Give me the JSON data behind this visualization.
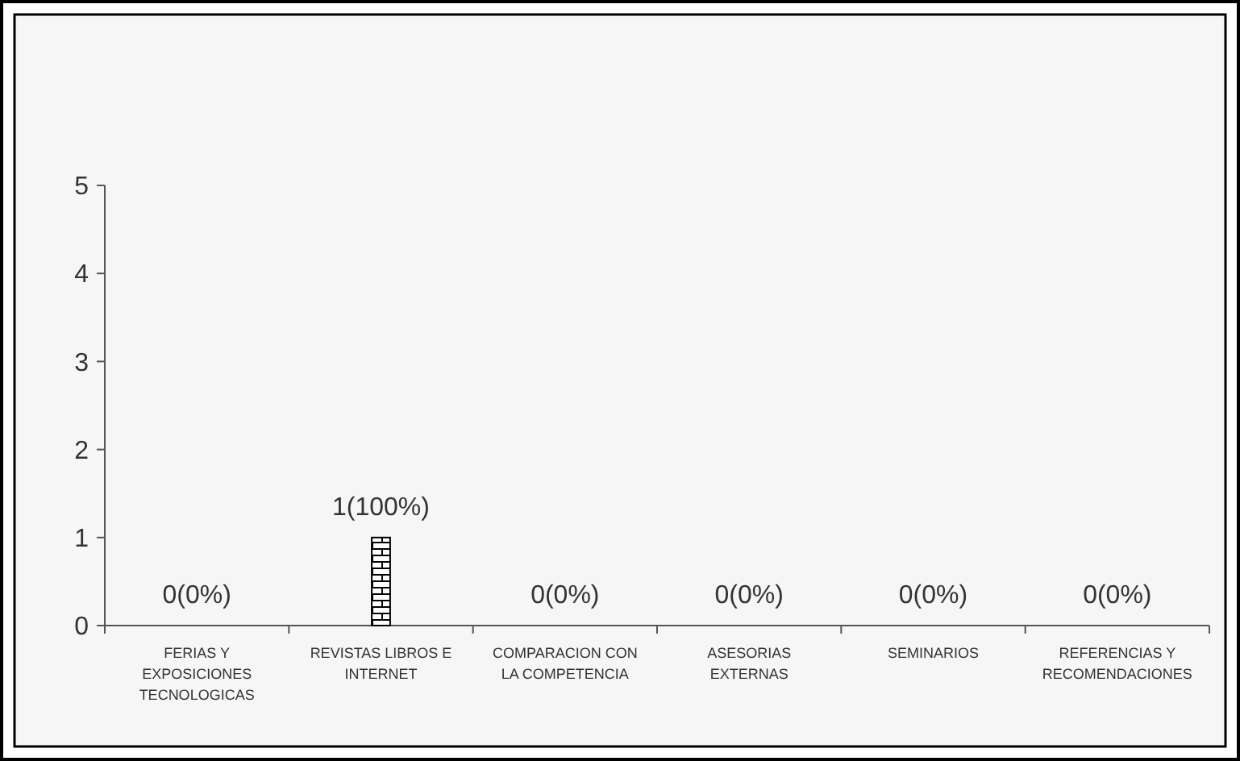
{
  "chart_data": {
    "type": "bar",
    "categories": [
      "FERIAS Y EXPOSICIONES TECNOLOGICAS",
      "REVISTAS LIBROS E INTERNET",
      "COMPARACION CON LA COMPETENCIA",
      "ASESORIAS EXTERNAS",
      "SEMINARIOS",
      "REFERENCIAS Y RECOMENDACIONES"
    ],
    "values": [
      0,
      1,
      0,
      0,
      0,
      0
    ],
    "value_labels": [
      "0(0%)",
      "1(100%)",
      "0(0%)",
      "0(0%)",
      "0(0%)",
      "0(0%)"
    ],
    "color": "#000000",
    "ylim": [
      0,
      5
    ],
    "yticks": [
      0,
      1,
      2,
      3,
      4,
      5
    ],
    "grid": false
  }
}
